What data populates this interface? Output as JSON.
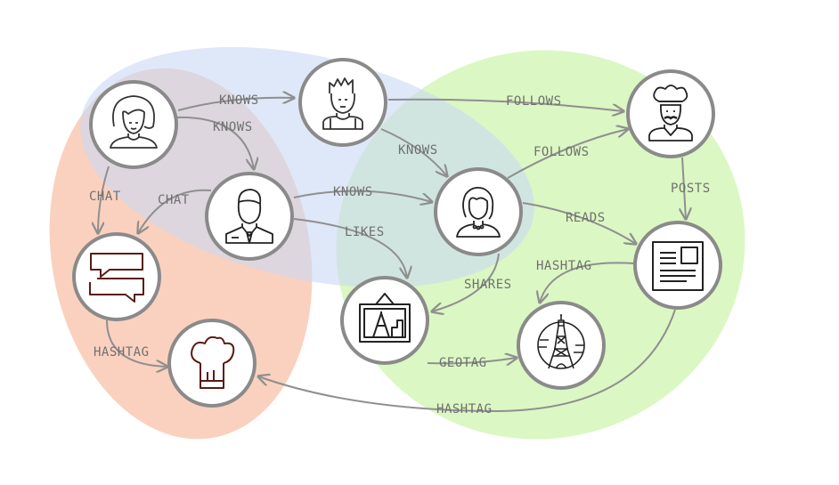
{
  "edges": {
    "knows_1": "KNOWS",
    "knows_2": "KNOWS",
    "knows_3": "KNOWS",
    "knows_4": "KNOWS",
    "follows_1": "FOLLOWS",
    "follows_2": "FOLLOWS",
    "chat_1": "CHAT",
    "chat_2": "CHAT",
    "likes": "LIKES",
    "reads": "READS",
    "posts": "POSTS",
    "shares": "SHARES",
    "hashtag_1": "HASHTAG",
    "hashtag_2": "HASHTAG",
    "hashtag_3": "HASHTAG",
    "geotag": "GEOTAG"
  },
  "colors": {
    "region_blue": "#d6e2f7",
    "region_red": "#f9c9b4",
    "region_green": "#d5f6b9",
    "node_ring": "#8a8a8a",
    "icon_dark": "#333333",
    "icon_brown": "#5b1a12",
    "edge": "#8f8f8f"
  },
  "icons": {
    "woman": "woman-icon",
    "man_curly": "man-icon",
    "chef": "chef-icon",
    "businessman": "businessman-icon",
    "woman_short": "woman-icon",
    "chat": "chat-bubbles-icon",
    "chef_hat": "chef-hat-icon",
    "picture": "eiffel-picture-icon",
    "eiffel": "eiffel-tower-icon",
    "article": "newspaper-icon"
  }
}
